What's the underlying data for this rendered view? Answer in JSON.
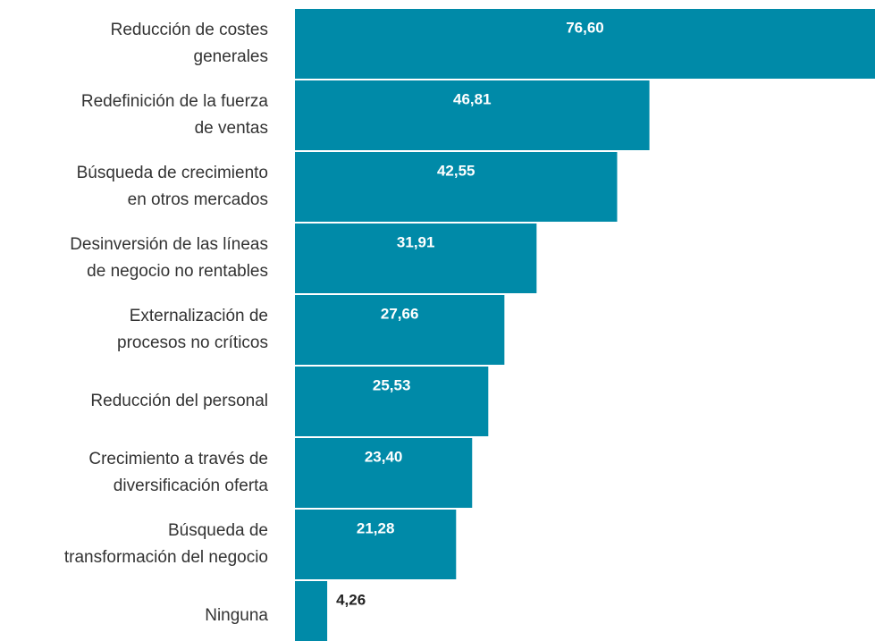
{
  "chart_data": {
    "type": "bar",
    "orientation": "horizontal",
    "color": "#008aa8",
    "categories": [
      [
        "Reducción de costes",
        "generales"
      ],
      [
        "Redefinición de la fuerza",
        "de ventas"
      ],
      [
        "Búsqueda de crecimiento",
        "en otros mercados"
      ],
      [
        "Desinversión de las líneas",
        "de negocio no rentables"
      ],
      [
        "Externalización de",
        "procesos no críticos"
      ],
      [
        "Reducción del personal"
      ],
      [
        "Crecimiento a través de",
        "diversificación oferta"
      ],
      [
        "Búsqueda de",
        "transformación del negocio"
      ],
      [
        "Ninguna"
      ]
    ],
    "values": [
      76.6,
      46.81,
      42.55,
      31.91,
      27.66,
      25.53,
      23.4,
      21.28,
      4.26
    ],
    "value_labels": [
      "76,60",
      "46,81",
      "42,55",
      "31,91",
      "27,66",
      "25,53",
      "23,40",
      "21,28",
      "4,26"
    ]
  }
}
